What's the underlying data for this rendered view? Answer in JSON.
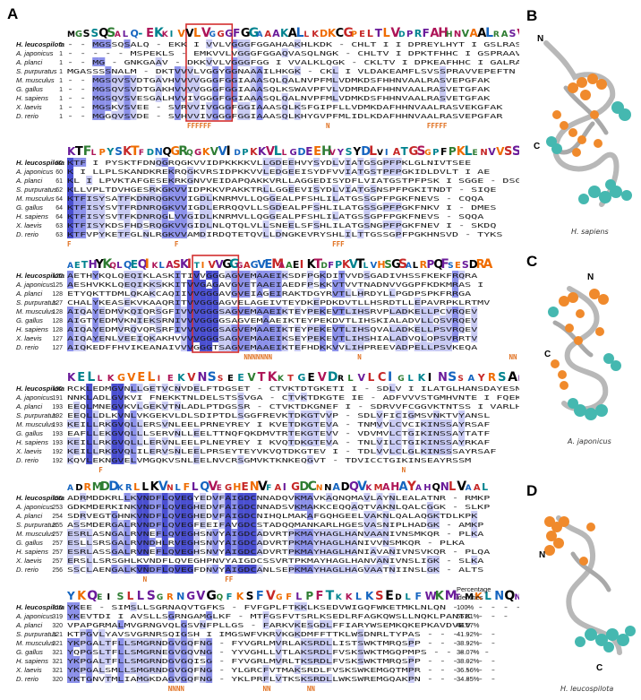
{
  "panels": {
    "A": "A",
    "B": "B",
    "C": "C",
    "D": "D"
  },
  "species": [
    "H. leucospilota",
    "A. japonicus",
    "A. planci",
    "S. purpuratus",
    "M. musculus",
    "G. gallus",
    "H. sapiens",
    "X. laevis",
    "D. rerio"
  ],
  "blocks": [
    {
      "logo": "MGSSQSALQ-EKKIVVLVGGGFGGAAAKALLKDKCGPELTLVDPRFAHHNVAALRASVEPGFAR",
      "starts": [
        "1",
        "1",
        "1",
        "1",
        "1",
        "1",
        "1",
        "1",
        "1"
      ],
      "rows": [
        "- - MGSSQSALQ - EKK I VVLVGGGFGGAHAAKHLKDK - CHLT I I DPREYLHYT I GSLRASVEPGFAE",
        "- - - - - MSPEKLS - EMKVVLVGGGFGGAQVASQLNGK - CHLTV I DPKTFHHC I GSPRAAVEAGFEK",
        "- - MG - GNKGAAV - DKKVVLVGGGFGG I VVALKLQGK - CKLTV I DPKEAFHHC I GALRACTEPGFAR",
        "MGASSSSNALM - DKTVVVLVGGYGGNAAAILHKGK - CKL I VLDAKEAMFLSVSSPRAVVEPEFTN",
        "- - MGSQVSVDTGAVHVVVVGGGFGGIAAASQLQALNVPFMLVDMKDSFHHNVAALRASVEPGFAK",
        "- - MGSQVSVDTGAKHVVVVGGGFGGIAAASQLKSWAVPFVLVDMRDAFHHNVAALRASVETGFAK",
        "- - MGSQVSVESGALHVVIVGGGFGGIAAASQLQALNVPFMLVDMKDSFHHNVAALRASVETGFAK",
        "- - MGSKVSVEE - SVRVVIVGGGFGGIAAASQLKSFGIPFLLVDMKDAFHHNVAALRASVEKGFAK",
        "- - MGGQVSVDE - SVHVVIVGGGFGGIAAASQLKHYGVPFMLIDLKDAFHHNVAALRASVEPGFAR"
      ],
      "marks": [
        {
          "col": 19,
          "text": "FFFFFF"
        },
        {
          "col": 41,
          "text": "N"
        },
        {
          "col": 57,
          "text": "FFFFF"
        }
      ]
    },
    {
      "logo": "KTFLPYSKTFDNQGRQGKVVIDPKKVLLGDEEHVYSYDLVIATGSGPFPKLENVVSSE",
      "starts": [
        "62",
        "60",
        "61",
        "62",
        "64",
        "64",
        "64",
        "63",
        "63"
      ],
      "rows": [
        "KTF I PYSKTFDNQGRQGKVVIDPKKKKVLLGDEEHVYSYDLVIATGSGPFPKLGLNIVTSEE",
        "K I LLPLSKANDKREKRQGKVRSIDPKKVVLEDGEEISYDFVVIATGSTPFPGKIDLDVLT I AE",
        "KL I LPVKTAFGESEKRKGNVVEIDAPQAKKVRLLAGGEDISYDFLVIATGSTPFPSK I SGGE - DSGV",
        "KLLVPLTDVHGESRKGKVVIDPKKVPAKKTRLLGGEEVISYDLVIATGSNSPFPGKITNDT - SIQE",
        "KTFISYSATFKDNRQGKVVIGDLKNRMVLLQGGEALPFSHLILATGSSGPFPGKFNEVS - CQQA",
        "KTFISYSVTFRDNRQGKVVIGDLERRQQVLLSGDEALPFSHLILATGSSGPFPGKFNKV I - DMES",
        "KTFISYSVTFKDNRQGLVVGIDLKNRMVLLQGGEALPFSHLILATGSSGPFPGKFNEVS - SQQA",
        "KTFISYKDSFHDSRQGKVVGIDLNLQTQLVLLSNEELSFSHLILATGSNGPFPGKFNEV I - SKDQ",
        "KTFVPYKETFGLNLRGKVVAMDIRDQTETQVLLDNGKEVRYSHLILTTGSSGPFPGKHNSVD - TYKS"
      ],
      "marks": [
        {
          "col": 0,
          "text": "F"
        },
        {
          "col": 17,
          "text": "F"
        },
        {
          "col": 42,
          "text": "FFF"
        }
      ]
    },
    {
      "logo": "AETHYKQLQEQIKLASKITIVVGGGAGVEMAAEIKTDFPKVTLVHSGSALRPQFSESDRA",
      "starts": [
        "127",
        "125",
        "128",
        "127",
        "128",
        "128",
        "128",
        "127",
        "127"
      ],
      "rows": [
        "AETHYKQLQEQIKLASKITIVVGGGAGVEMAAEIKSDFPGKDITVVDSGADIVHSSFKEKFRQRA",
        "AESHVKKLQEQIKKSKKITVVGAGAVGVETAAEIAEDFPSKKVTVVTNADNVVGGPFKDKMRAS I",
        "ETYQKTTDMLQKAKCAQIIVVGGGAVGVEIAGEIRAKTDGYRVTLLHRDYLLPGDPSPKFRRGA",
        "CHALYKEASEKVKAAQRITVVGGGAGVELAGEIVTEYDKEPDKDVTLLHSRDTLLEPAVRPKLRTMV",
        "AIQAYEDMVKQIQRSGFIVVVGGGSAGVEMAAEIKTEYPEKEVTLIHSRVPLADKELLPCVRQEV",
        "AIGTYEDMVKNIEKSRNIVVVGGGGSAGVEMAAEIKTEYPEKDVTLIHSKIALADVLLQSVRQEV",
        "AIQAYEDMVRQVQRSRFIVVVGGGSAGVEMAAEIKTEYPEKEVTLIHSQVALADKELLPSVRQEV",
        "AIQAYENLVEEIQKAKHVVVVGGGSAGVEMAAEIKSEYPEKEVTLIHSHIALADVQLQPSVRRTV",
        "AIQKEDFFHVIKEANAIVVVGGGTSAGVEMAAEIKTEFHDKKVVLIHPREEVADPELLPSVKEQA"
      ],
      "marks": [
        {
          "col": 28,
          "text": "NNNNNNN"
        },
        {
          "col": 46,
          "text": "N"
        },
        {
          "col": 70,
          "text": "NN"
        }
      ]
    },
    {
      "logo": "KELLKGVELIEKVNSSEEVTKKTGEVDRLVLCIGLKINSSAYRSAF",
      "starts": [
        "192",
        "191",
        "193",
        "192",
        "193",
        "193",
        "193",
        "192",
        "192"
      ],
      "rows": [
        "RCKLEDMGVNLLGETVCNVDELFTDGSET - CTVKTDTGKETI I - SDLV I ILATGLHANSDAYESNF",
        "NNKLADLGVKVI FNEKKTNLDELSTSSVGA - CTVKTDKGTE IE - ADFVVVSTGMHVNTE I FQEKF",
        "EEQLMNEGVKVLGEKVTNLADLPTDGSSR - CTVKTDKGNEF I - SDRVVFCGGVKTNTSS I VARLH",
        "EEQLLDLKVNLVKGEKVLDLSDIPTDLSGGFREVKTDKGTVVP - SDLVFICIGMSVNKTVYANSL",
        "KEILLRKGVQLLERSVNLEELPRNEYREY I KVETDKGTEVA - TNMVVLCVCIKINSSAYRSAF",
        "EAFLLEKGVQLLLSERVNLLEELTTNQFQKDMVTRTEKGTEVV - VDVMVLCTGIKINSSAYTATF",
        "KEILLRKGVQLLLERVNLEELPLNEYREY I KVQTDKGTEVA - TNLVILCTGIKINSSAYRKAF",
        "KEILLRKGVQLILERVSNLEELPRSEYTEYVKVQTDKGTEV I - TDLVVLCLGLKINSSSAYRSAF",
        "KQVLEKNGVELVMGQKVSNLEELNVCRSGMVKTKNKEQGVT - TDVICCTGIKINSEAYRSSM"
      ],
      "marks": [
        {
          "col": 5,
          "text": "F"
        },
        {
          "col": 53,
          "text": "N"
        }
      ]
    },
    {
      "logo": "ADRMDDKRLLKVNLFLQVEGHENVFAIGDCNNADQVKMAHAYAHQNLVAAL",
      "starts": [
        "255",
        "253",
        "254",
        "255",
        "257",
        "257",
        "257",
        "257",
        "256"
      ],
      "rows": [
        "ADRMDDKRLLKVNDFLQVEGYEDVFAIGDCNNADQVKMAVKAQNQMAVLAYNLEALATNR - RMKP",
        "GDKMDERKINKVNDFLQVEGHEDVFAIGDCNNADSVKMAKKCEQQAQTVAKNLQALCGGK - SLKP",
        "SDRVEGTGHNKVNDFLQVEGHEDVFAIGDCNIHQLMAKAFGQHGEELVAKNLQALAQGKTDLKPK",
        "ASSMDERGALRVNDFLQVEGFEEIFAVGDCSTADQQMANKARLHGESVASNIPLHADGK - AMKP",
        "ESRLASNGALRVNEFLQVEGHSNVYAIGDCADVRTPKMAYHAGLHANVAANIVNSMKQR - PLKA",
        "ESLLSRSGALRVNDHLRVEGHSNVYAIGDCADVRTPKMAYHAGLHANIVVNSMKQR - PLKA",
        "ESRLASSGALRVNEFLQVEGHSNVYAIGDCADVRTPKMAYHAGLHANIAVANIVNSVKQR - PLQA",
        "ERSLLSRSGHLKVNDFLQVEGHPNVYAIGDCSSVRTPKMAYHAGLHANVANIVNSLIGK - SLKA",
        "SSCLAENGALKVNDFLQVEGFDNVYAIGDCANLSEPKMAYHAGLHAGVAATNIINSLGK - ALTS"
      ],
      "marks": [
        {
          "col": 12,
          "text": "N"
        },
        {
          "col": 25,
          "text": "FF"
        }
      ]
    },
    {
      "logo": "YKQEISLLSGRNGVGQFKSFVGFLPFTKKLKSEDLFWKMTMKLNQNP",
      "starts": [
        "319",
        "319",
        "320",
        "321",
        "321",
        "321",
        "321",
        "321",
        "320"
      ],
      "rows": [
        "YKEE - SIMSLLSGRNAQVTGFKS - FVFGPLFTKKLKSEDVWIGQFWKETMKLNLQN - - - - - - -",
        "YKEVTDI I AVSLLSGRNGAMGLKF - MTFGSFVTSRLKSEDLRFAGKQWSLLNQKLPANTK - - -",
        "VPAPGRMALMVGRNGVQLGSVNFPLLGS - FARKVKESGDLFFIARYWSEMKQKEPKAVDVEV",
        "KTPGVLYAVSVGRNRSQIGSH I IMGSWFVKRVKGKDMFFTTKLWSDNRLTYPAS - - - - - -",
        "YKPGALTFLLSMGRNDGVGQFNG - FYVGRLMVRLAKSRDLLISTSWKTMRQSPP - - - - - -",
        "YQPGSLTFLLSMGRNEGVGQVNG - YYVGHLLVTLAKSRDLFVSKSWKTMGQPMPS - - - - -",
        "YKPGALTFLLSMGRNDGVGQISG - FYVGRLMVRLTKSRDLFVSKSWKTMRQSPP - - - - - -",
        "YKPGALSMLLSMGRNDGVGQFNG - YLGRCFVTMAKSRDLFVSKSWKEMGQTMPR - - - - - -",
        "YKTGNVTMLIAMGKDAGVGQFNG - YKLPRFLVTKSKSRDLLWKSWREMGQAKPN - - - - - -"
      ],
      "marks": [
        {
          "col": 16,
          "text": "NNNN"
        },
        {
          "col": 31,
          "text": "NN"
        },
        {
          "col": 38,
          "text": "NN"
        }
      ],
      "identity_header": [
        "Percentage",
        "identities"
      ],
      "identities": [
        "100%",
        "55.31%",
        "44.57%",
        "41.92%",
        "38.92%",
        "38.07%",
        "38.02%",
        "36.56%",
        "34.85%"
      ]
    }
  ],
  "structures": [
    {
      "panel": "B",
      "caption": "H. sapiens",
      "n_label": "N",
      "c_label": "C"
    },
    {
      "panel": "C",
      "caption": "A. japonicus",
      "n_label": "N",
      "c_label": "C"
    },
    {
      "panel": "D",
      "caption": "H. leucospilota",
      "n_label": "N",
      "c_label": "C"
    }
  ],
  "colors": {
    "conserved_dark": "#4a4fd1",
    "conserved_mid": "#8c91ea",
    "conserved_light": "#c9cbf3",
    "box": "#d32f2f",
    "mark": "#e07020",
    "fad_region": "#f08a2c",
    "nad_region": "#45b8b0",
    "ribbon": "#b8b8b8"
  }
}
